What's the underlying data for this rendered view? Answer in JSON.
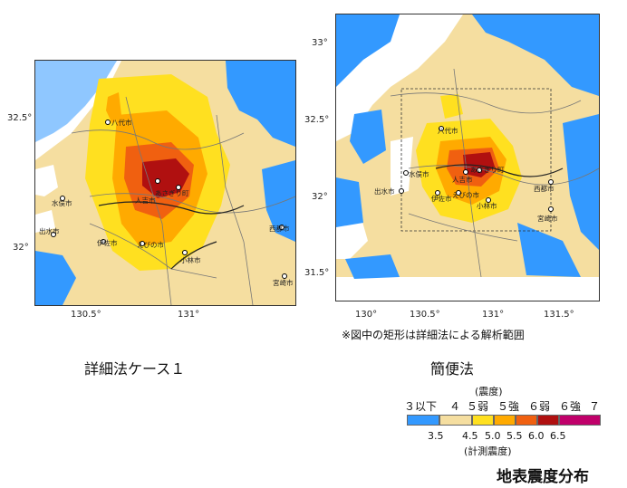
{
  "maps": {
    "left": {
      "caption": "詳細法ケース１",
      "x_ticks": [
        "130.5°",
        "131°"
      ],
      "y_ticks": [
        "32.5°",
        "32°"
      ],
      "cities": [
        "八代市",
        "人吉市",
        "あさぎり町",
        "水俣市",
        "出水市",
        "伊佐市",
        "えびの市",
        "小林市",
        "西都市",
        "宮崎市"
      ]
    },
    "right": {
      "caption": "簡便法",
      "note": "※図中の矩形は詳細法による解析範囲",
      "x_ticks": [
        "130°",
        "130.5°",
        "131°",
        "131.5°"
      ],
      "y_ticks": [
        "33°",
        "32.5°",
        "32°",
        "31.5°"
      ],
      "cities": [
        "八代市",
        "人吉市",
        "あさぎり町",
        "水俣市",
        "出水市",
        "伊佐市",
        "えびの市",
        "小林市",
        "西都市",
        "宮崎市"
      ]
    }
  },
  "legend": {
    "title": "(震度)",
    "subtitle": "(計測震度)",
    "classes": [
      "３以下",
      "４",
      "５弱",
      "５強",
      "６弱",
      "６強",
      "７"
    ],
    "values": [
      "3.5",
      "4.5",
      "5.0",
      "5.5",
      "6.0",
      "6.5"
    ],
    "colors": [
      "#3399ff",
      "#f5dea0",
      "#ffe020",
      "#ffaa00",
      "#f06010",
      "#b01010",
      "#c0006a"
    ]
  },
  "figure_title": "地表震度分布"
}
